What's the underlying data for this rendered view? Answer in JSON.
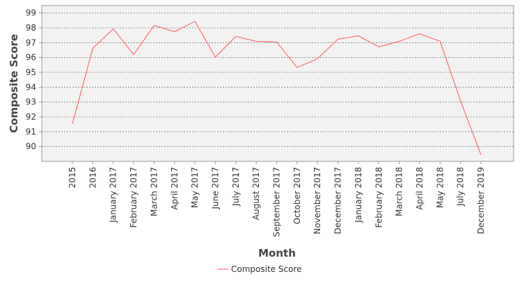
{
  "chart_data": {
    "type": "line",
    "x_label": "Month",
    "y_label": "Composite Score",
    "categories": [
      "2015",
      "2016",
      "January 2017",
      "February 2017",
      "March 2017",
      "April 2017",
      "May 2017",
      "June 2017",
      "July 2017",
      "August 2017",
      "September 2017",
      "October 2017",
      "November 2017",
      "December 2017",
      "January 2018",
      "February 2018",
      "March 2018",
      "April 2018",
      "May 2018",
      "July 2018",
      "December 2019"
    ],
    "series": [
      {
        "name": "Composite Score",
        "color": "#ff5555",
        "values": [
          91.54,
          96.62,
          97.93,
          96.2,
          98.16,
          97.74,
          98.44,
          96.02,
          97.42,
          97.09,
          97.04,
          95.32,
          95.92,
          97.23,
          97.46,
          96.72,
          97.09,
          97.6,
          97.09,
          93.08,
          89.44
        ]
      }
    ],
    "ylim": [
      89,
      99.5
    ],
    "yticks": [
      90,
      91,
      92,
      93,
      94,
      95,
      96,
      97,
      98,
      99
    ],
    "grid": true,
    "legend": "bottom"
  }
}
